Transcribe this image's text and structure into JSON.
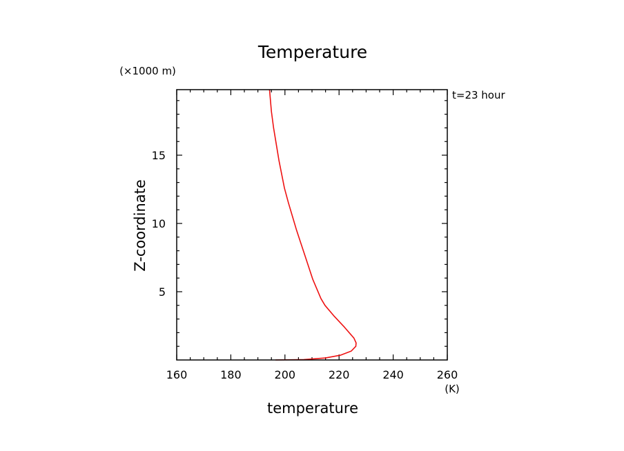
{
  "chart_data": {
    "type": "line",
    "title": "Temperature",
    "xlabel": "temperature",
    "ylabel": "Z-coordinate",
    "x_unit": "(K)",
    "y_unit": "(×1000 m)",
    "annotation": "t=23 hour",
    "xlim": [
      160,
      260
    ],
    "ylim": [
      0,
      19.8
    ],
    "x_ticks": [
      160,
      180,
      200,
      220,
      240,
      260
    ],
    "y_ticks": [
      5,
      10,
      15
    ],
    "grid": false,
    "series": [
      {
        "color": "#ee1111",
        "x": [
          196.5,
          207.0,
          215.0,
          220.5,
          224.5,
          226.2,
          226.3,
          225.5,
          222.0,
          218.0,
          214.8,
          213.3,
          211.8,
          210.3,
          208.8,
          207.3,
          205.8,
          204.3,
          202.8,
          201.3,
          199.8,
          198.8,
          197.8,
          196.8,
          195.8,
          195.0,
          194.3
        ],
        "y": [
          0.0,
          0.03,
          0.15,
          0.35,
          0.65,
          1.0,
          1.25,
          1.6,
          2.4,
          3.25,
          4.0,
          4.5,
          5.2,
          5.9,
          6.8,
          7.7,
          8.6,
          9.5,
          10.5,
          11.5,
          12.6,
          13.6,
          14.6,
          15.8,
          17.0,
          18.2,
          19.8
        ]
      }
    ]
  }
}
